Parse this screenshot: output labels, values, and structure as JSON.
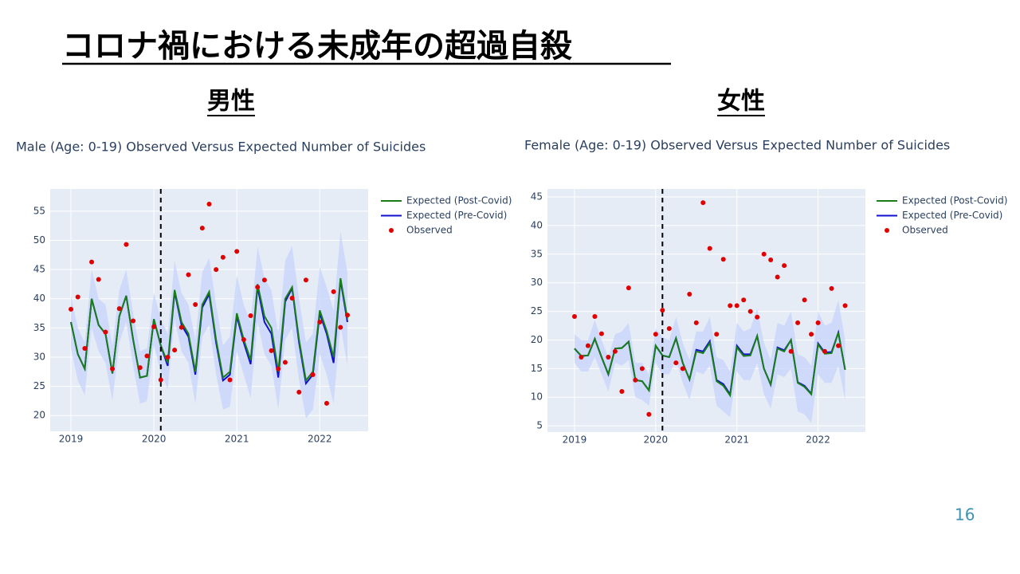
{
  "slide": {
    "title": "コロナ禍における未成年の超過自殺",
    "page": 16
  },
  "chart_data": [
    {
      "type": "line",
      "heading": "男性",
      "title": "Male (Age: 0-19) Observed Versus Expected Number of Suicides",
      "x": [
        "2019-01",
        "2019-02",
        "2019-03",
        "2019-04",
        "2019-05",
        "2019-06",
        "2019-07",
        "2019-08",
        "2019-09",
        "2019-10",
        "2019-11",
        "2019-12",
        "2020-01",
        "2020-02",
        "2020-03",
        "2020-04",
        "2020-05",
        "2020-06",
        "2020-07",
        "2020-08",
        "2020-09",
        "2020-10",
        "2020-11",
        "2020-12",
        "2021-01",
        "2021-02",
        "2021-03",
        "2021-04",
        "2021-05",
        "2021-06",
        "2021-07",
        "2021-08",
        "2021-09",
        "2021-10",
        "2021-11",
        "2021-12",
        "2022-01",
        "2022-02",
        "2022-03",
        "2022-04",
        "2022-05"
      ],
      "series": [
        {
          "name": "Expected (Post-Covid)",
          "color": "#1a7d1a",
          "mode": "lines",
          "values": [
            36,
            30.5,
            28,
            40,
            35.5,
            34,
            27.2,
            37,
            40.5,
            33,
            26.5,
            26.8,
            36.5,
            32,
            29,
            41.5,
            36,
            34,
            27.5,
            39,
            41.2,
            33,
            26.5,
            27.5,
            37.5,
            33,
            29.5,
            42.5,
            37,
            35,
            27.5,
            40,
            42,
            33,
            26,
            27.5,
            38,
            34.5,
            30,
            43.5,
            36.5
          ]
        },
        {
          "name": "Expected (Pre-Covid)",
          "color": "#1010d0",
          "mode": "lines",
          "values": [
            36,
            30.5,
            28,
            40,
            35.5,
            34,
            27.2,
            37,
            40.5,
            33,
            26.5,
            26.8,
            36.5,
            32,
            28.5,
            41.2,
            35.5,
            33.5,
            27,
            38.5,
            40.8,
            32.5,
            26,
            27,
            37,
            32.5,
            28.8,
            42,
            36,
            34,
            26.5,
            39.5,
            41.8,
            32.5,
            25.5,
            27,
            37.5,
            34,
            29,
            43.2,
            36
          ]
        },
        {
          "name": "Observed",
          "color": "#e00000",
          "mode": "markers",
          "values": [
            38.2,
            40.3,
            31.5,
            46.3,
            43.3,
            34.3,
            28,
            38.3,
            49.3,
            36.2,
            28.2,
            30.2,
            35.2,
            26.1,
            30,
            31.2,
            35.1,
            44.1,
            39,
            52.1,
            56.2,
            45,
            47.1,
            26.1,
            48.1,
            33,
            37.1,
            42,
            43.2,
            31.1,
            28,
            29.1,
            40.1,
            24,
            43.2,
            27,
            36,
            22.1,
            41.2,
            35.1,
            37.2
          ]
        }
      ],
      "band": {
        "color": "#c9d6fb",
        "lower": [
          31.5,
          26,
          23.5,
          35,
          31,
          29,
          22.5,
          32.5,
          36,
          28.5,
          22,
          22.5,
          32,
          27.5,
          24.5,
          36.5,
          31,
          29,
          22,
          33.5,
          35.5,
          27,
          21,
          21.5,
          31,
          27,
          23,
          36,
          30.5,
          28.5,
          21,
          33,
          35,
          26,
          19.5,
          21,
          30.5,
          27,
          22,
          35.5,
          28.5
        ],
        "upper": [
          40.5,
          35,
          32.5,
          45,
          40,
          39,
          32,
          41.5,
          45,
          37.5,
          31,
          31.5,
          41,
          36.5,
          34,
          46.5,
          41,
          39,
          33,
          44.5,
          47,
          39,
          32,
          33.5,
          44,
          39,
          36,
          49,
          43.5,
          41.5,
          34,
          46.5,
          49,
          40,
          32.5,
          34,
          45.5,
          42,
          38,
          51.5,
          44.5
        ]
      },
      "vline": "2020-02",
      "xlim": [
        "2018-10",
        "2022-08"
      ],
      "xticks": [
        {
          "value": "2019-01",
          "label": "2019"
        },
        {
          "value": "2020-01",
          "label": "2020"
        },
        {
          "value": "2021-01",
          "label": "2021"
        },
        {
          "value": "2022-01",
          "label": "2022"
        }
      ],
      "ylim": [
        17.3,
        58.8
      ],
      "yticks": [
        20,
        25,
        30,
        35,
        40,
        45,
        50,
        55
      ],
      "grid": true,
      "legend": "right"
    },
    {
      "type": "line",
      "heading": "女性",
      "title": "Female (Age: 0-19) Observed Versus Expected Number of Suicides",
      "x": [
        "2019-01",
        "2019-02",
        "2019-03",
        "2019-04",
        "2019-05",
        "2019-06",
        "2019-07",
        "2019-08",
        "2019-09",
        "2019-10",
        "2019-11",
        "2019-12",
        "2020-01",
        "2020-02",
        "2020-03",
        "2020-04",
        "2020-05",
        "2020-06",
        "2020-07",
        "2020-08",
        "2020-09",
        "2020-10",
        "2020-11",
        "2020-12",
        "2021-01",
        "2021-02",
        "2021-03",
        "2021-04",
        "2021-05",
        "2021-06",
        "2021-07",
        "2021-08",
        "2021-09",
        "2021-10",
        "2021-11",
        "2021-12",
        "2022-01",
        "2022-02",
        "2022-03",
        "2022-04",
        "2022-05"
      ],
      "series": [
        {
          "name": "Expected (Post-Covid)",
          "color": "#1a7d1a",
          "mode": "lines",
          "values": [
            18.5,
            17.2,
            17.3,
            20.2,
            17,
            14,
            18.5,
            18.6,
            19.7,
            13,
            12.8,
            11.2,
            19,
            17.3,
            17,
            20.3,
            16,
            13.1,
            18,
            17.7,
            19.5,
            12.8,
            12,
            10.3,
            18.7,
            17.2,
            17.3,
            20.7,
            15,
            12.2,
            18.5,
            18,
            20,
            12.5,
            11.8,
            10.5,
            19.2,
            17.6,
            17.7,
            21.3,
            14.8
          ]
        },
        {
          "name": "Expected (Pre-Covid)",
          "color": "#1010d0",
          "mode": "lines",
          "values": [
            18.5,
            17.2,
            17.3,
            20.2,
            17,
            14,
            18.5,
            18.6,
            19.7,
            13,
            12.8,
            11.2,
            19,
            17.3,
            17,
            20.3,
            16,
            13.1,
            18.3,
            18,
            19.8,
            13,
            12.3,
            10.5,
            19,
            17.5,
            17.5,
            20.7,
            15,
            12.2,
            18.7,
            18.2,
            20,
            12.6,
            12,
            10.6,
            19.4,
            17.8,
            17.9,
            21.3,
            14.8
          ]
        },
        {
          "name": "Observed",
          "color": "#e00000",
          "mode": "markers",
          "values": [
            24.1,
            17,
            19,
            24.1,
            21.1,
            17,
            18,
            11,
            29.1,
            13,
            15,
            7,
            21,
            25.2,
            22,
            16,
            15,
            28,
            23,
            44,
            36,
            21,
            34.1,
            26,
            26,
            27,
            25,
            24,
            35,
            34,
            31,
            33,
            18,
            23,
            27,
            21,
            23,
            18,
            29,
            19,
            26
          ]
        }
      ],
      "band": {
        "color": "#c9d6fb",
        "lower": [
          16,
          14.5,
          14.5,
          17,
          14,
          11,
          16,
          15.5,
          16.5,
          10,
          9.5,
          8.5,
          16,
          14,
          14,
          16.5,
          12.5,
          9.5,
          14.5,
          14,
          15.5,
          8.5,
          7.5,
          6.5,
          14.5,
          13,
          13,
          16,
          10.5,
          8,
          14,
          13.5,
          15,
          7.5,
          7,
          5.5,
          14,
          12.5,
          12.5,
          15.5,
          9.5
        ],
        "upper": [
          21,
          20,
          20,
          23.5,
          20,
          17,
          21,
          21.5,
          23,
          16,
          16,
          14,
          22,
          20.5,
          20,
          24,
          19.5,
          16.5,
          21.5,
          21.5,
          24,
          17,
          16.5,
          14.5,
          23,
          21.5,
          22,
          25.5,
          19.5,
          16.5,
          23,
          22.5,
          25,
          17.5,
          17,
          15.5,
          25,
          22.5,
          23,
          27,
          20
        ]
      },
      "vline": "2020-02",
      "xlim": [
        "2018-09",
        "2022-08"
      ],
      "xticks": [
        {
          "value": "2019-01",
          "label": "2019"
        },
        {
          "value": "2020-01",
          "label": "2020"
        },
        {
          "value": "2021-01",
          "label": "2021"
        },
        {
          "value": "2022-01",
          "label": "2022"
        }
      ],
      "ylim": [
        3.9,
        46.4
      ],
      "yticks": [
        5,
        10,
        15,
        20,
        25,
        30,
        35,
        40,
        45
      ],
      "grid": true,
      "legend": "right"
    }
  ]
}
